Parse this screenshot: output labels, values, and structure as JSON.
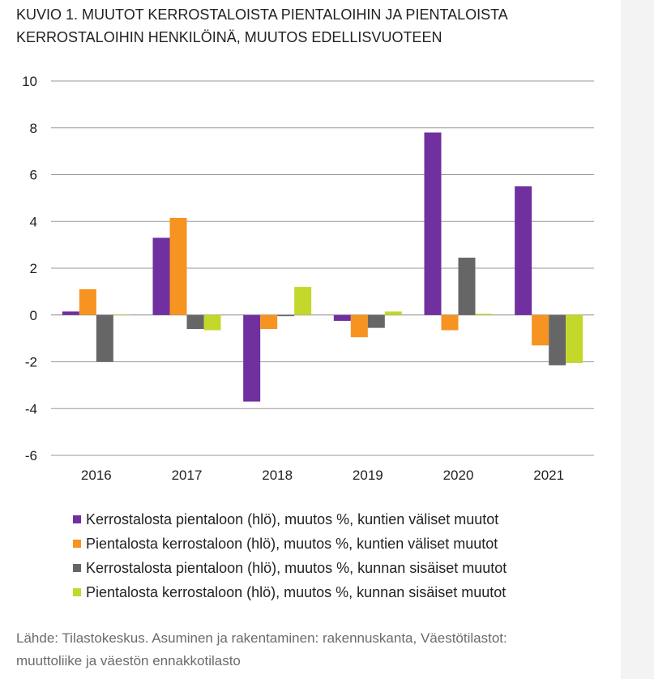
{
  "page": {
    "title_line1": "KUVIO 1. MUUTOT KERROSTALOISTA PIENTALOIHIN JA PIENTALOISTA",
    "title_line2": "KERROSTALOIHIN HENKILÖINÄ, MUUTOS EDELLISVUOTEEN",
    "source_line1": "Lähde: Tilastokeskus. Asuminen ja rakentaminen: rakennuskanta, Väestötilastot:",
    "source_line2": "muuttoliike ja väestön ennakkotilasto"
  },
  "chart_data": {
    "type": "bar",
    "categories": [
      "2016",
      "2017",
      "2018",
      "2019",
      "2020",
      "2021"
    ],
    "ylim": [
      -6,
      10
    ],
    "yticks": [
      10,
      8,
      6,
      4,
      2,
      0,
      -2,
      -4,
      -6
    ],
    "grid": true,
    "legend_position": "bottom",
    "title": "KUVIO 1. MUUTOT KERROSTALOISTA PIENTALOIHIN JA PIENTALOISTA KERROSTALOIHIN HENKILÖINÄ, MUUTOS EDELLISVUOTEEN",
    "series": [
      {
        "name": "Kerrostalosta pientaloon (hlö), muutos %, kuntien väliset muutot",
        "color": "#7030a0",
        "values": [
          0.15,
          3.3,
          -3.7,
          -0.25,
          7.8,
          5.5
        ]
      },
      {
        "name": "Pientalosta kerrostaloon (hlö), muutos %, kuntien väliset muutot",
        "color": "#f79320",
        "values": [
          1.1,
          4.15,
          -0.6,
          -0.95,
          -0.65,
          -1.3
        ]
      },
      {
        "name": "Kerrostalosta pientaloon (hlö), muutos %, kunnan sisäiset muutot",
        "color": "#666666",
        "values": [
          -2.0,
          -0.6,
          -0.05,
          -0.55,
          2.45,
          -2.15
        ]
      },
      {
        "name": "Pientalosta kerrostaloon (hlö), muutos %, kunnan sisäiset muutot",
        "color": "#c3d82b",
        "values": [
          0.02,
          -0.65,
          1.2,
          0.15,
          0.05,
          -2.05
        ]
      }
    ]
  }
}
